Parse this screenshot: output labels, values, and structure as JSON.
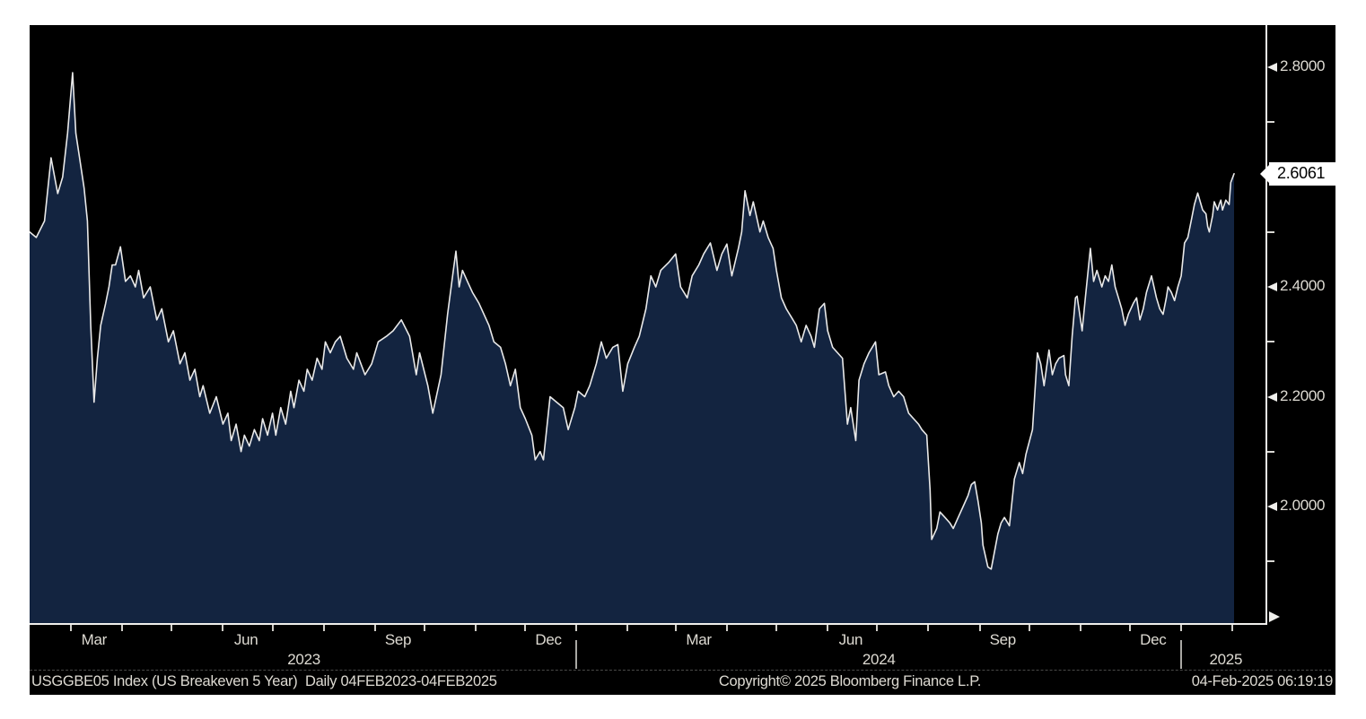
{
  "footer": {
    "left": "USGGBE05 Index (US Breakeven 5 Year)  Daily 04FEB2023-04FEB2025",
    "center": "Copyright© 2025 Bloomberg Finance L.P.",
    "right": "04-Feb-2025 06:19:19"
  },
  "last_price": {
    "label": "2.6061"
  },
  "colors": {
    "background": "#ffffff",
    "canvas": "#000000",
    "area_fill": "#132440",
    "line": "#e9e9e9",
    "axis": "#f0efec",
    "label_text": "#dedbd3",
    "tag_bg": "#ffffff",
    "tag_text": "#000000"
  },
  "chart_data": {
    "type": "area",
    "title": "USGGBE05 Index (US Breakeven 5 Year)",
    "periodicity": "Daily",
    "date_range": "04FEB2023-04FEB2025",
    "x_unit": "days_since_04FEB2023",
    "x_range": [
      0,
      730
    ],
    "ylim": [
      1.787,
      2.877
    ],
    "grid": false,
    "last_value": 2.6061,
    "y_axis": {
      "side": "right",
      "major_ticks": [
        {
          "value": 2.8,
          "label": "2.8000"
        },
        {
          "value": 2.4,
          "label": "2.4000"
        },
        {
          "value": 2.2,
          "label": "2.2000"
        },
        {
          "value": 2.0,
          "label": "2.0000"
        }
      ],
      "minor_ticks": [
        2.7,
        2.5,
        2.3,
        2.1,
        1.9
      ]
    },
    "x_axis": {
      "month_labels": [
        {
          "label": "Mar",
          "day": 39
        },
        {
          "label": "Jun",
          "day": 131
        },
        {
          "label": "Sep",
          "day": 223
        },
        {
          "label": "Dec",
          "day": 314
        },
        {
          "label": "Mar",
          "day": 405
        },
        {
          "label": "Jun",
          "day": 497
        },
        {
          "label": "Sep",
          "day": 589
        },
        {
          "label": "Dec",
          "day": 680
        }
      ],
      "year_labels": [
        {
          "label": "2023",
          "day": 166
        },
        {
          "label": "2024",
          "day": 514
        },
        {
          "label": "2025",
          "day": 724
        }
      ],
      "year_separators": [
        331,
        697
      ],
      "month_ticks": [
        25,
        56,
        86,
        117,
        147,
        178,
        209,
        239,
        270,
        300,
        331,
        362,
        391,
        422,
        452,
        483,
        513,
        544,
        575,
        605,
        636,
        666,
        697,
        728
      ]
    },
    "points": [
      [
        0,
        2.5
      ],
      [
        4,
        2.49
      ],
      [
        9,
        2.52
      ],
      [
        13,
        2.635
      ],
      [
        17,
        2.57
      ],
      [
        20,
        2.6
      ],
      [
        23,
        2.68
      ],
      [
        26,
        2.79
      ],
      [
        28,
        2.68
      ],
      [
        30,
        2.64
      ],
      [
        33,
        2.58
      ],
      [
        35,
        2.52
      ],
      [
        37,
        2.33
      ],
      [
        39,
        2.19
      ],
      [
        41,
        2.27
      ],
      [
        43,
        2.33
      ],
      [
        46,
        2.37
      ],
      [
        48,
        2.4
      ],
      [
        50,
        2.44
      ],
      [
        52,
        2.44
      ],
      [
        55,
        2.473
      ],
      [
        58,
        2.41
      ],
      [
        61,
        2.42
      ],
      [
        64,
        2.4
      ],
      [
        66,
        2.43
      ],
      [
        69,
        2.38
      ],
      [
        73,
        2.4
      ],
      [
        77,
        2.34
      ],
      [
        80,
        2.36
      ],
      [
        84,
        2.3
      ],
      [
        87,
        2.32
      ],
      [
        91,
        2.26
      ],
      [
        94,
        2.28
      ],
      [
        97,
        2.23
      ],
      [
        100,
        2.25
      ],
      [
        103,
        2.2
      ],
      [
        105,
        2.22
      ],
      [
        109,
        2.17
      ],
      [
        113,
        2.2
      ],
      [
        117,
        2.15
      ],
      [
        120,
        2.17
      ],
      [
        122,
        2.12
      ],
      [
        125,
        2.15
      ],
      [
        128,
        2.1
      ],
      [
        130,
        2.13
      ],
      [
        133,
        2.11
      ],
      [
        136,
        2.14
      ],
      [
        139,
        2.12
      ],
      [
        141,
        2.16
      ],
      [
        144,
        2.13
      ],
      [
        147,
        2.17
      ],
      [
        149,
        2.13
      ],
      [
        152,
        2.18
      ],
      [
        155,
        2.15
      ],
      [
        158,
        2.21
      ],
      [
        160,
        2.18
      ],
      [
        163,
        2.23
      ],
      [
        166,
        2.21
      ],
      [
        168,
        2.25
      ],
      [
        171,
        2.23
      ],
      [
        174,
        2.27
      ],
      [
        177,
        2.25
      ],
      [
        179,
        2.3
      ],
      [
        182,
        2.28
      ],
      [
        185,
        2.3
      ],
      [
        188,
        2.31
      ],
      [
        192,
        2.27
      ],
      [
        196,
        2.25
      ],
      [
        198,
        2.28
      ],
      [
        203,
        2.24
      ],
      [
        207,
        2.26
      ],
      [
        211,
        2.3
      ],
      [
        216,
        2.31
      ],
      [
        220,
        2.32
      ],
      [
        225,
        2.34
      ],
      [
        230,
        2.31
      ],
      [
        234,
        2.24
      ],
      [
        236,
        2.28
      ],
      [
        241,
        2.22
      ],
      [
        244,
        2.17
      ],
      [
        249,
        2.24
      ],
      [
        253,
        2.35
      ],
      [
        256,
        2.42
      ],
      [
        258,
        2.465
      ],
      [
        260,
        2.4
      ],
      [
        262,
        2.43
      ],
      [
        265,
        2.41
      ],
      [
        268,
        2.39
      ],
      [
        272,
        2.37
      ],
      [
        275,
        2.35
      ],
      [
        278,
        2.33
      ],
      [
        281,
        2.3
      ],
      [
        285,
        2.29
      ],
      [
        288,
        2.26
      ],
      [
        291,
        2.22
      ],
      [
        294,
        2.25
      ],
      [
        297,
        2.18
      ],
      [
        300,
        2.16
      ],
      [
        304,
        2.13
      ],
      [
        306,
        2.085
      ],
      [
        309,
        2.1
      ],
      [
        311,
        2.085
      ],
      [
        315,
        2.2
      ],
      [
        319,
        2.19
      ],
      [
        323,
        2.18
      ],
      [
        326,
        2.14
      ],
      [
        330,
        2.18
      ],
      [
        332,
        2.21
      ],
      [
        336,
        2.2
      ],
      [
        339,
        2.22
      ],
      [
        343,
        2.26
      ],
      [
        346,
        2.3
      ],
      [
        349,
        2.27
      ],
      [
        353,
        2.29
      ],
      [
        356,
        2.295
      ],
      [
        359,
        2.21
      ],
      [
        362,
        2.26
      ],
      [
        366,
        2.29
      ],
      [
        369,
        2.31
      ],
      [
        373,
        2.36
      ],
      [
        376,
        2.42
      ],
      [
        379,
        2.4
      ],
      [
        382,
        2.43
      ],
      [
        387,
        2.445
      ],
      [
        391,
        2.46
      ],
      [
        394,
        2.4
      ],
      [
        398,
        2.38
      ],
      [
        401,
        2.42
      ],
      [
        405,
        2.44
      ],
      [
        408,
        2.46
      ],
      [
        412,
        2.48
      ],
      [
        416,
        2.43
      ],
      [
        419,
        2.46
      ],
      [
        422,
        2.478
      ],
      [
        425,
        2.42
      ],
      [
        429,
        2.47
      ],
      [
        431,
        2.5
      ],
      [
        433,
        2.575
      ],
      [
        436,
        2.53
      ],
      [
        438,
        2.555
      ],
      [
        442,
        2.5
      ],
      [
        444,
        2.52
      ],
      [
        447,
        2.49
      ],
      [
        450,
        2.47
      ],
      [
        452,
        2.43
      ],
      [
        455,
        2.38
      ],
      [
        458,
        2.36
      ],
      [
        461,
        2.345
      ],
      [
        464,
        2.33
      ],
      [
        467,
        2.3
      ],
      [
        470,
        2.33
      ],
      [
        473,
        2.31
      ],
      [
        475,
        2.29
      ],
      [
        478,
        2.36
      ],
      [
        481,
        2.37
      ],
      [
        483,
        2.32
      ],
      [
        486,
        2.29
      ],
      [
        489,
        2.28
      ],
      [
        492,
        2.27
      ],
      [
        495,
        2.15
      ],
      [
        497,
        2.18
      ],
      [
        500,
        2.12
      ],
      [
        502,
        2.23
      ],
      [
        505,
        2.26
      ],
      [
        508,
        2.28
      ],
      [
        512,
        2.3
      ],
      [
        514,
        2.24
      ],
      [
        518,
        2.245
      ],
      [
        520,
        2.22
      ],
      [
        523,
        2.2
      ],
      [
        526,
        2.21
      ],
      [
        529,
        2.2
      ],
      [
        532,
        2.17
      ],
      [
        535,
        2.16
      ],
      [
        538,
        2.15
      ],
      [
        540,
        2.14
      ],
      [
        543,
        2.13
      ],
      [
        545,
        2.03
      ],
      [
        546,
        1.94
      ],
      [
        549,
        1.96
      ],
      [
        551,
        1.99
      ],
      [
        554,
        1.98
      ],
      [
        557,
        1.97
      ],
      [
        559,
        1.96
      ],
      [
        562,
        1.98
      ],
      [
        565,
        2.0
      ],
      [
        568,
        2.02
      ],
      [
        570,
        2.04
      ],
      [
        572,
        2.045
      ],
      [
        574,
        2.01
      ],
      [
        576,
        1.97
      ],
      [
        577,
        1.93
      ],
      [
        580,
        1.89
      ],
      [
        582,
        1.886
      ],
      [
        586,
        1.95
      ],
      [
        588,
        1.97
      ],
      [
        590,
        1.98
      ],
      [
        593,
        1.965
      ],
      [
        596,
        2.05
      ],
      [
        599,
        2.08
      ],
      [
        601,
        2.06
      ],
      [
        603,
        2.095
      ],
      [
        607,
        2.14
      ],
      [
        610,
        2.28
      ],
      [
        612,
        2.26
      ],
      [
        614,
        2.22
      ],
      [
        617,
        2.285
      ],
      [
        619,
        2.24
      ],
      [
        621,
        2.26
      ],
      [
        623,
        2.27
      ],
      [
        626,
        2.275
      ],
      [
        627,
        2.24
      ],
      [
        629,
        2.22
      ],
      [
        631,
        2.31
      ],
      [
        633,
        2.38
      ],
      [
        634,
        2.383
      ],
      [
        637,
        2.32
      ],
      [
        639,
        2.38
      ],
      [
        642,
        2.47
      ],
      [
        644,
        2.41
      ],
      [
        646,
        2.43
      ],
      [
        649,
        2.4
      ],
      [
        651,
        2.42
      ],
      [
        653,
        2.41
      ],
      [
        655,
        2.44
      ],
      [
        657,
        2.4
      ],
      [
        659,
        2.38
      ],
      [
        661,
        2.36
      ],
      [
        663,
        2.33
      ],
      [
        665,
        2.35
      ],
      [
        668,
        2.37
      ],
      [
        670,
        2.38
      ],
      [
        672,
        2.34
      ],
      [
        674,
        2.36
      ],
      [
        676,
        2.39
      ],
      [
        679,
        2.42
      ],
      [
        682,
        2.38
      ],
      [
        684,
        2.36
      ],
      [
        686,
        2.35
      ],
      [
        688,
        2.38
      ],
      [
        689,
        2.4
      ],
      [
        691,
        2.39
      ],
      [
        693,
        2.375
      ],
      [
        695,
        2.4
      ],
      [
        697,
        2.42
      ],
      [
        699,
        2.48
      ],
      [
        701,
        2.49
      ],
      [
        703,
        2.52
      ],
      [
        705,
        2.55
      ],
      [
        707,
        2.571
      ],
      [
        709,
        2.55
      ],
      [
        710,
        2.54
      ],
      [
        712,
        2.533
      ],
      [
        713,
        2.51
      ],
      [
        714,
        2.5
      ],
      [
        716,
        2.53
      ],
      [
        717,
        2.555
      ],
      [
        719,
        2.54
      ],
      [
        720,
        2.55
      ],
      [
        721,
        2.558
      ],
      [
        722,
        2.54
      ],
      [
        724,
        2.558
      ],
      [
        726,
        2.55
      ],
      [
        727,
        2.59
      ],
      [
        729,
        2.6061
      ]
    ]
  }
}
